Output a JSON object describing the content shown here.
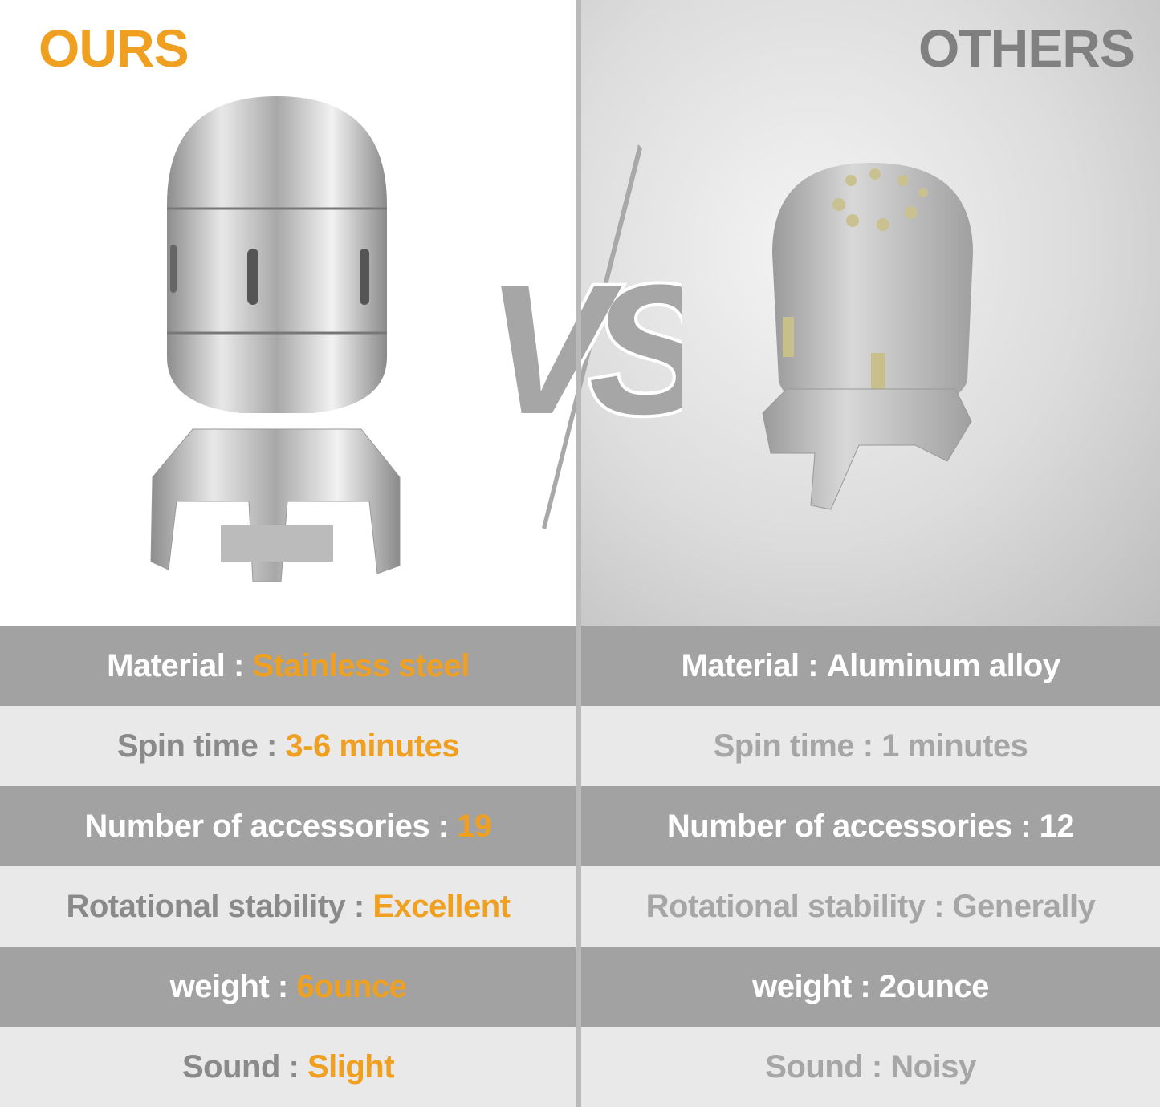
{
  "headings": {
    "ours": "OURS",
    "others": "OTHERS"
  },
  "vs_label": "VS",
  "colors": {
    "accent": "#f0a020",
    "dark_row": "#a2a2a2",
    "light_row": "#e9e9e9",
    "others_heading": "#808080"
  },
  "rows": [
    {
      "label": "Material : ",
      "ours": "Stainless steel",
      "others": "Aluminum alloy"
    },
    {
      "label": "Spin time : ",
      "ours": "3-6 minutes",
      "others": "1 minutes"
    },
    {
      "label": "Number of accessories : ",
      "ours": "19",
      "others": "12"
    },
    {
      "label": "Rotational stability : ",
      "ours": "Excellent",
      "others": "Generally"
    },
    {
      "label": "weight : ",
      "ours": "6ounce",
      "others": "2ounce"
    },
    {
      "label": "Sound : ",
      "ours": "Slight",
      "others": "Noisy"
    }
  ]
}
